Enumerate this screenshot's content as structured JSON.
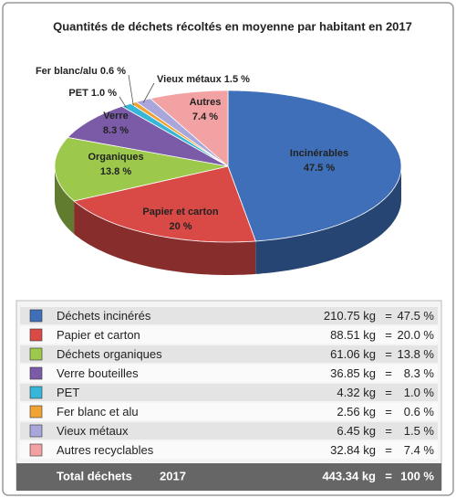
{
  "chart_data": {
    "type": "pie",
    "title": "Quantités de déchets récoltés en moyenne par habitant en 2017",
    "categories": [
      "Incinérables",
      "Papier et carton",
      "Organiques",
      "Verre",
      "PET",
      "Fer blanc/alu",
      "Vieux métaux",
      "Autres"
    ],
    "values": [
      47.5,
      20,
      13.8,
      8.3,
      1.0,
      0.6,
      1.5,
      7.4
    ],
    "value_labels": [
      "47.5 %",
      "20 %",
      "13.8 %",
      "8.3 %",
      "1.0 %",
      "0.6 %",
      "1.5 %",
      "7.4 %"
    ],
    "colors": [
      "#3f6fb8",
      "#d94a47",
      "#9cc84c",
      "#7b5ba8",
      "#36b6d8",
      "#f0a232",
      "#a9a6dc",
      "#f2a2a2"
    ]
  },
  "table": {
    "rows": [
      [
        "Déchets incinérés",
        "210.75 kg",
        "=",
        "47.5 %"
      ],
      [
        "Papier et carton",
        "88.51 kg",
        "=",
        "20.0 %"
      ],
      [
        "Déchets organiques",
        "61.06 kg",
        "=",
        "13.8 %"
      ],
      [
        "Verre bouteilles",
        "36.85 kg",
        "=",
        "8.3 %"
      ],
      [
        "PET",
        "4.32 kg",
        "=",
        "1.0 %"
      ],
      [
        "Fer blanc et alu",
        "2.56 kg",
        "=",
        "0.6 %"
      ],
      [
        "Vieux métaux",
        "6.45 kg",
        "=",
        "1.5 %"
      ],
      [
        "Autres recyclables",
        "32.84 kg",
        "=",
        "7.4 %"
      ]
    ],
    "total": [
      "Total déchets",
      "2017",
      "443.34 kg",
      "=",
      "100 %"
    ]
  }
}
